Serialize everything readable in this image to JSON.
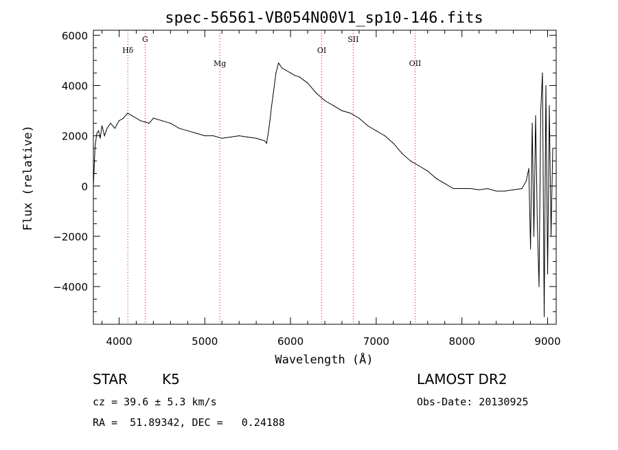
{
  "chart_data": {
    "type": "line",
    "title": "spec-56561-VB054N00V1_sp10-146.fits",
    "xlabel": "Wavelength (Å)",
    "ylabel": "Flux (relative)",
    "xlim": [
      3700,
      9100
    ],
    "ylim": [
      -5500,
      6200
    ],
    "xticks": [
      4000,
      5000,
      6000,
      7000,
      8000,
      9000
    ],
    "xtick_labels": [
      "4000",
      "5000",
      "6000",
      "7000",
      "8000",
      "9000"
    ],
    "yticks": [
      -4000,
      -2000,
      0,
      2000,
      4000,
      6000
    ],
    "ytick_labels": [
      "−4000",
      "−2000",
      "0",
      "2000",
      "4000",
      "6000"
    ],
    "grid": false,
    "line_color": "#000000",
    "marker_color": "#cc0000",
    "lines": [
      {
        "label": "Hδ",
        "x": 4102
      },
      {
        "label": "G",
        "x": 4304
      },
      {
        "label": "Mg",
        "x": 5175
      },
      {
        "label": "OI",
        "x": 6364
      },
      {
        "label": "SII",
        "x": 6731
      },
      {
        "label": "OII",
        "x": 7454
      }
    ],
    "series": [
      {
        "x": [
          3700,
          3720,
          3740,
          3760,
          3780,
          3800,
          3830,
          3860,
          3900,
          3950,
          4000,
          4050,
          4100,
          4150,
          4200,
          4250,
          4300,
          4350,
          4400,
          4500,
          4600,
          4700,
          4800,
          4900,
          5000,
          5100,
          5200,
          5300,
          5400,
          5500,
          5600,
          5700,
          5720,
          5740,
          5760,
          5780,
          5800,
          5830,
          5860,
          5900,
          5950,
          6000,
          6050,
          6100,
          6200,
          6300,
          6400,
          6500,
          6600,
          6700,
          6800,
          6900,
          7000,
          7100,
          7200,
          7300,
          7400,
          7500,
          7600,
          7700,
          7800,
          7900,
          8000,
          8100,
          8200,
          8300,
          8400,
          8500,
          8600,
          8700,
          8750,
          8780,
          8800,
          8820,
          8840,
          8860,
          8880,
          8900,
          8920,
          8940,
          8960,
          8980,
          9000,
          9020,
          9040,
          9060
        ],
        "y": [
          0,
          1600,
          2100,
          2200,
          1900,
          2400,
          2000,
          2300,
          2500,
          2300,
          2600,
          2700,
          2900,
          2800,
          2700,
          2600,
          2550,
          2500,
          2700,
          2600,
          2500,
          2300,
          2200,
          2100,
          2000,
          2000,
          1900,
          1950,
          2000,
          1950,
          1900,
          1800,
          1700,
          2100,
          2600,
          3200,
          3700,
          4500,
          4900,
          4700,
          4600,
          4500,
          4400,
          4350,
          4100,
          3700,
          3400,
          3200,
          3000,
          2900,
          2700,
          2400,
          2200,
          2000,
          1700,
          1300,
          1000,
          800,
          600,
          300,
          100,
          -100,
          -100,
          -100,
          -150,
          -100,
          -200,
          -200,
          -150,
          -100,
          200,
          700,
          -2500,
          2500,
          -2000,
          2800,
          -1500,
          -4000,
          3000,
          4500,
          -5200,
          4000,
          -3500,
          3200,
          -2000,
          1500
        ]
      }
    ]
  },
  "info": {
    "object_class": "STAR",
    "subclass": "K5",
    "survey": "LAMOST DR2",
    "redshift_line": "cz = 39.6 ± 5.3 km/s",
    "obs_date_line": "Obs-Date: 20130925",
    "coords_line": "RA =  51.89342, DEC =   0.24188"
  }
}
